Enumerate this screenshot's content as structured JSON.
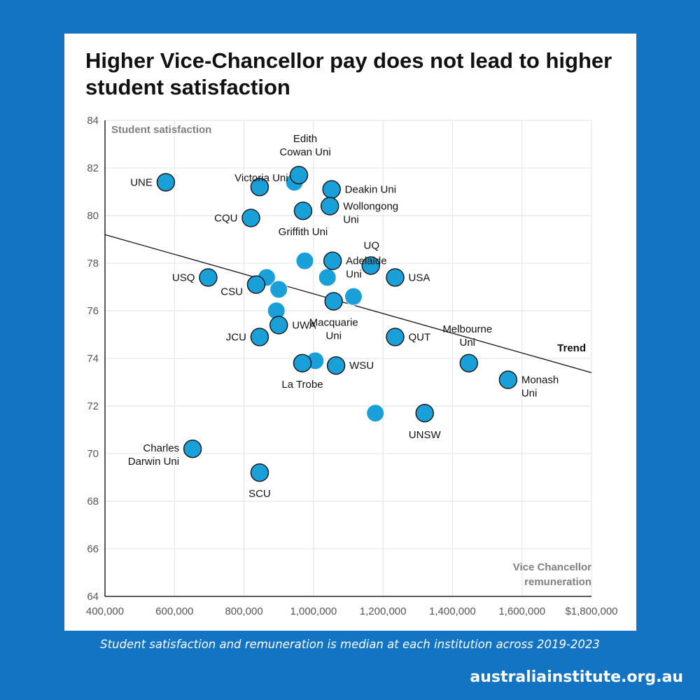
{
  "title": "Higher Vice-Chancellor pay does not lead to higher student satisfaction",
  "footnote": "Student satisfaction and remuneration is median at each institution across 2019-2023",
  "website": "australiainstitute.org.au",
  "colors": {
    "background": "#1474c4",
    "point": "#1aa0d8",
    "point_outline": "#111111",
    "trend": "#111111",
    "grid": "#e2e2e2",
    "axis_title": "#808080"
  },
  "chart_data": {
    "type": "scatter",
    "title": "Higher Vice-Chancellor pay does not lead to higher student satisfaction",
    "xlabel": "Vice Chancellor remuneration",
    "ylabel": "Student satisfaction",
    "xlim": [
      400000,
      1800000
    ],
    "ylim": [
      64,
      84
    ],
    "x_ticks": [
      400000,
      600000,
      800000,
      1000000,
      1200000,
      1400000,
      1600000,
      1800000
    ],
    "x_tick_labels": [
      "400,000",
      "600,000",
      "800,000",
      "1,000,000",
      "1,200,000",
      "1,400,000",
      "1,600,000",
      "$1,800,000"
    ],
    "y_ticks": [
      64,
      66,
      68,
      70,
      72,
      74,
      76,
      78,
      80,
      82,
      84
    ],
    "y_tick_labels": [
      "64",
      "66",
      "68",
      "70",
      "72",
      "74",
      "76",
      "78",
      "80",
      "82",
      "84"
    ],
    "trend": {
      "label": "Trend",
      "points": [
        [
          400000,
          79.2
        ],
        [
          1800000,
          73.4
        ]
      ]
    },
    "points": [
      {
        "x": 575000,
        "y": 81.4,
        "outlined": true,
        "label": "UNE"
      },
      {
        "x": 845000,
        "y": 81.2,
        "outlined": true
      },
      {
        "x": 945000,
        "y": 81.4,
        "outlined": false
      },
      {
        "x": 958000,
        "y": 81.7,
        "outlined": true,
        "label": "Edith Cowan Uni"
      },
      {
        "x": 1052000,
        "y": 81.1,
        "outlined": true,
        "label": "Deakin Uni"
      },
      {
        "x": 1047000,
        "y": 80.4,
        "outlined": true,
        "label": "Wollongong Uni"
      },
      {
        "x": 970000,
        "y": 80.2,
        "outlined": true,
        "label": "Griffith Uni"
      },
      {
        "x": 820000,
        "y": 79.9,
        "outlined": true,
        "label": "CQU"
      },
      {
        "x": 975000,
        "y": 78.1,
        "outlined": false
      },
      {
        "x": 1055000,
        "y": 78.1,
        "outlined": true,
        "label": "Adelaide Uni"
      },
      {
        "x": 1165000,
        "y": 77.9,
        "outlined": true,
        "label": "UQ"
      },
      {
        "x": 1040000,
        "y": 77.4,
        "outlined": false
      },
      {
        "x": 1235000,
        "y": 77.4,
        "outlined": true,
        "label": "USA"
      },
      {
        "x": 697000,
        "y": 77.4,
        "outlined": true,
        "label": "USQ"
      },
      {
        "x": 865000,
        "y": 77.4,
        "outlined": false
      },
      {
        "x": 835000,
        "y": 77.1,
        "outlined": true,
        "label": "CSU"
      },
      {
        "x": 900000,
        "y": 76.9,
        "outlined": false
      },
      {
        "x": 1115000,
        "y": 76.6,
        "outlined": false
      },
      {
        "x": 1058000,
        "y": 76.4,
        "outlined": true,
        "label": "Macquarie Uni"
      },
      {
        "x": 893000,
        "y": 76.0,
        "outlined": false
      },
      {
        "x": 900000,
        "y": 75.4,
        "outlined": true,
        "label": "UWA"
      },
      {
        "x": 845000,
        "y": 74.9,
        "outlined": true,
        "label": "JCU"
      },
      {
        "x": 1235000,
        "y": 74.9,
        "outlined": true,
        "label": "QUT"
      },
      {
        "x": 1005000,
        "y": 73.9,
        "outlined": false
      },
      {
        "x": 968000,
        "y": 73.8,
        "outlined": true,
        "label": "La Trobe"
      },
      {
        "x": 1065000,
        "y": 73.7,
        "outlined": true,
        "label": "WSU"
      },
      {
        "x": 1447000,
        "y": 73.8,
        "outlined": true,
        "label": "Melbourne Uni"
      },
      {
        "x": 1560000,
        "y": 73.1,
        "outlined": true,
        "label": "Monash Uni"
      },
      {
        "x": 1178000,
        "y": 71.7,
        "outlined": false
      },
      {
        "x": 1320000,
        "y": 71.7,
        "outlined": true,
        "label": "UNSW"
      },
      {
        "x": 652000,
        "y": 70.2,
        "outlined": true,
        "label": "Charles Darwin Uni"
      },
      {
        "x": 845000,
        "y": 69.2,
        "outlined": true,
        "label": "SCU"
      },
      {
        "x": 850000,
        "y": 81.2,
        "outlined": false,
        "label": "Victoria Uni"
      }
    ]
  }
}
